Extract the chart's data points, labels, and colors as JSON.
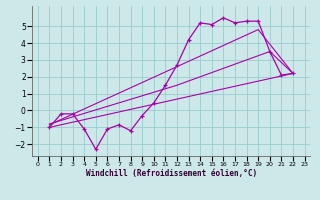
{
  "xlabel": "Windchill (Refroidissement éolien,°C)",
  "bg_color": "#cce8e8",
  "grid_color": "#99cccc",
  "line_color": "#aa00aa",
  "xlim": [
    -0.5,
    23.5
  ],
  "ylim": [
    -2.7,
    6.2
  ],
  "yticks": [
    -2,
    -1,
    0,
    1,
    2,
    3,
    4,
    5
  ],
  "xticks": [
    0,
    1,
    2,
    3,
    4,
    5,
    6,
    7,
    8,
    9,
    10,
    11,
    12,
    13,
    14,
    15,
    16,
    17,
    18,
    19,
    20,
    21,
    22,
    23
  ],
  "line1_x": [
    1,
    2,
    3,
    4,
    5,
    6,
    7,
    8,
    9,
    10,
    11,
    12,
    13,
    14,
    15,
    16,
    17,
    18,
    19,
    20,
    21,
    22
  ],
  "line1_y": [
    -1.0,
    -0.2,
    -0.2,
    -1.1,
    -2.3,
    -1.1,
    -0.85,
    -1.2,
    -0.3,
    0.45,
    1.5,
    2.7,
    4.2,
    5.2,
    5.1,
    5.5,
    5.2,
    5.3,
    5.3,
    3.5,
    2.1,
    2.2
  ],
  "line2_x": [
    1,
    22
  ],
  "line2_y": [
    -1.0,
    2.2
  ],
  "line3_x": [
    1,
    12,
    20,
    22
  ],
  "line3_y": [
    -0.8,
    1.5,
    3.5,
    2.2
  ],
  "line4_x": [
    1,
    19,
    22
  ],
  "line4_y": [
    -0.85,
    4.8,
    2.2
  ]
}
